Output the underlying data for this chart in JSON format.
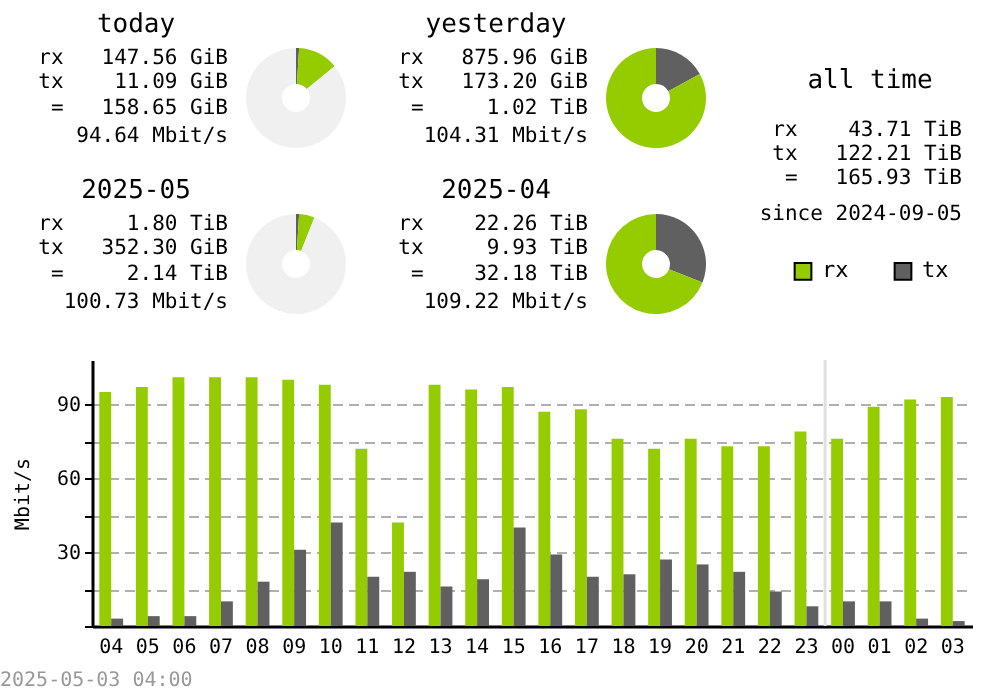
{
  "chart_data": [
    {
      "type": "donut",
      "title": "today",
      "categories": [
        null,
        null,
        null
      ],
      "values": [
        1,
        13,
        86
      ],
      "colors": [
        "#606060",
        "#94cc00",
        "#f0f0f0"
      ],
      "annotations": [
        "rx   147.56 GiB",
        "tx    11.09 GiB",
        "=   158.65 GiB",
        "94.64 Mbit/s"
      ]
    },
    {
      "type": "donut",
      "title": "yesterday",
      "categories": [
        null,
        null
      ],
      "values": [
        17,
        83
      ],
      "colors": [
        "#606060",
        "#94cc00"
      ],
      "annotations": [
        "rx   875.96 GiB",
        "tx   173.20 GiB",
        "=     1.02 TiB",
        "104.31 Mbit/s"
      ]
    },
    {
      "type": "other",
      "title": "all time",
      "annotations": [
        "rx    43.71 TiB",
        "tx   122.21 TiB",
        "=   165.93 TiB",
        "since 2024-09-05"
      ]
    },
    {
      "type": "donut",
      "title": "2025-05",
      "categories": [
        null,
        null,
        null
      ],
      "values": [
        1,
        5,
        94
      ],
      "colors": [
        "#606060",
        "#94cc00",
        "#f0f0f0"
      ],
      "annotations": [
        "rx     1.80 TiB",
        "tx   352.30 GiB",
        "=     2.14 TiB",
        "100.73 Mbit/s"
      ]
    },
    {
      "type": "donut",
      "title": "2025-04",
      "categories": [
        null,
        null
      ],
      "values": [
        31,
        69
      ],
      "colors": [
        "#606060",
        "#94cc00"
      ],
      "annotations": [
        "rx    22.26 TiB",
        "tx     9.93 TiB",
        "=    32.18 TiB",
        "109.22 Mbit/s"
      ]
    },
    {
      "type": "bar",
      "ylabel": "Mbit/s",
      "categories": [
        "04",
        "05",
        "06",
        "07",
        "08",
        "09",
        "10",
        "11",
        "12",
        "13",
        "14",
        "15",
        "16",
        "17",
        "18",
        "19",
        "20",
        "21",
        "22",
        "23",
        "00",
        "01",
        "02",
        "03"
      ],
      "series": [
        {
          "name": "rx",
          "color": "#94cc00",
          "values": [
            95,
            97,
            101,
            101,
            101,
            100,
            98,
            72,
            42,
            98,
            96,
            97,
            87,
            88,
            76,
            72,
            76,
            73,
            73,
            79,
            76,
            89,
            92,
            93
          ]
        },
        {
          "name": "tx",
          "color": "#606060",
          "values": [
            3,
            4,
            4,
            10,
            18,
            31,
            42,
            20,
            22,
            16,
            19,
            40,
            29,
            20,
            21,
            27,
            25,
            22,
            14,
            8,
            10,
            10,
            3,
            2
          ]
        }
      ],
      "ylim": [
        0,
        108
      ],
      "yticks": [
        {
          "value": 0,
          "label": null
        },
        {
          "value": 15,
          "label": null
        },
        30,
        {
          "value": 45,
          "label": null
        },
        60,
        {
          "value": 75,
          "label": null
        },
        90
      ],
      "grid": "y",
      "legend": "top right",
      "ref_lines": [
        {
          "axis": "x",
          "value": "00",
          "color": "#e0e0e0"
        }
      ],
      "annotations": [
        "2025-05-03 04:00"
      ]
    }
  ]
}
